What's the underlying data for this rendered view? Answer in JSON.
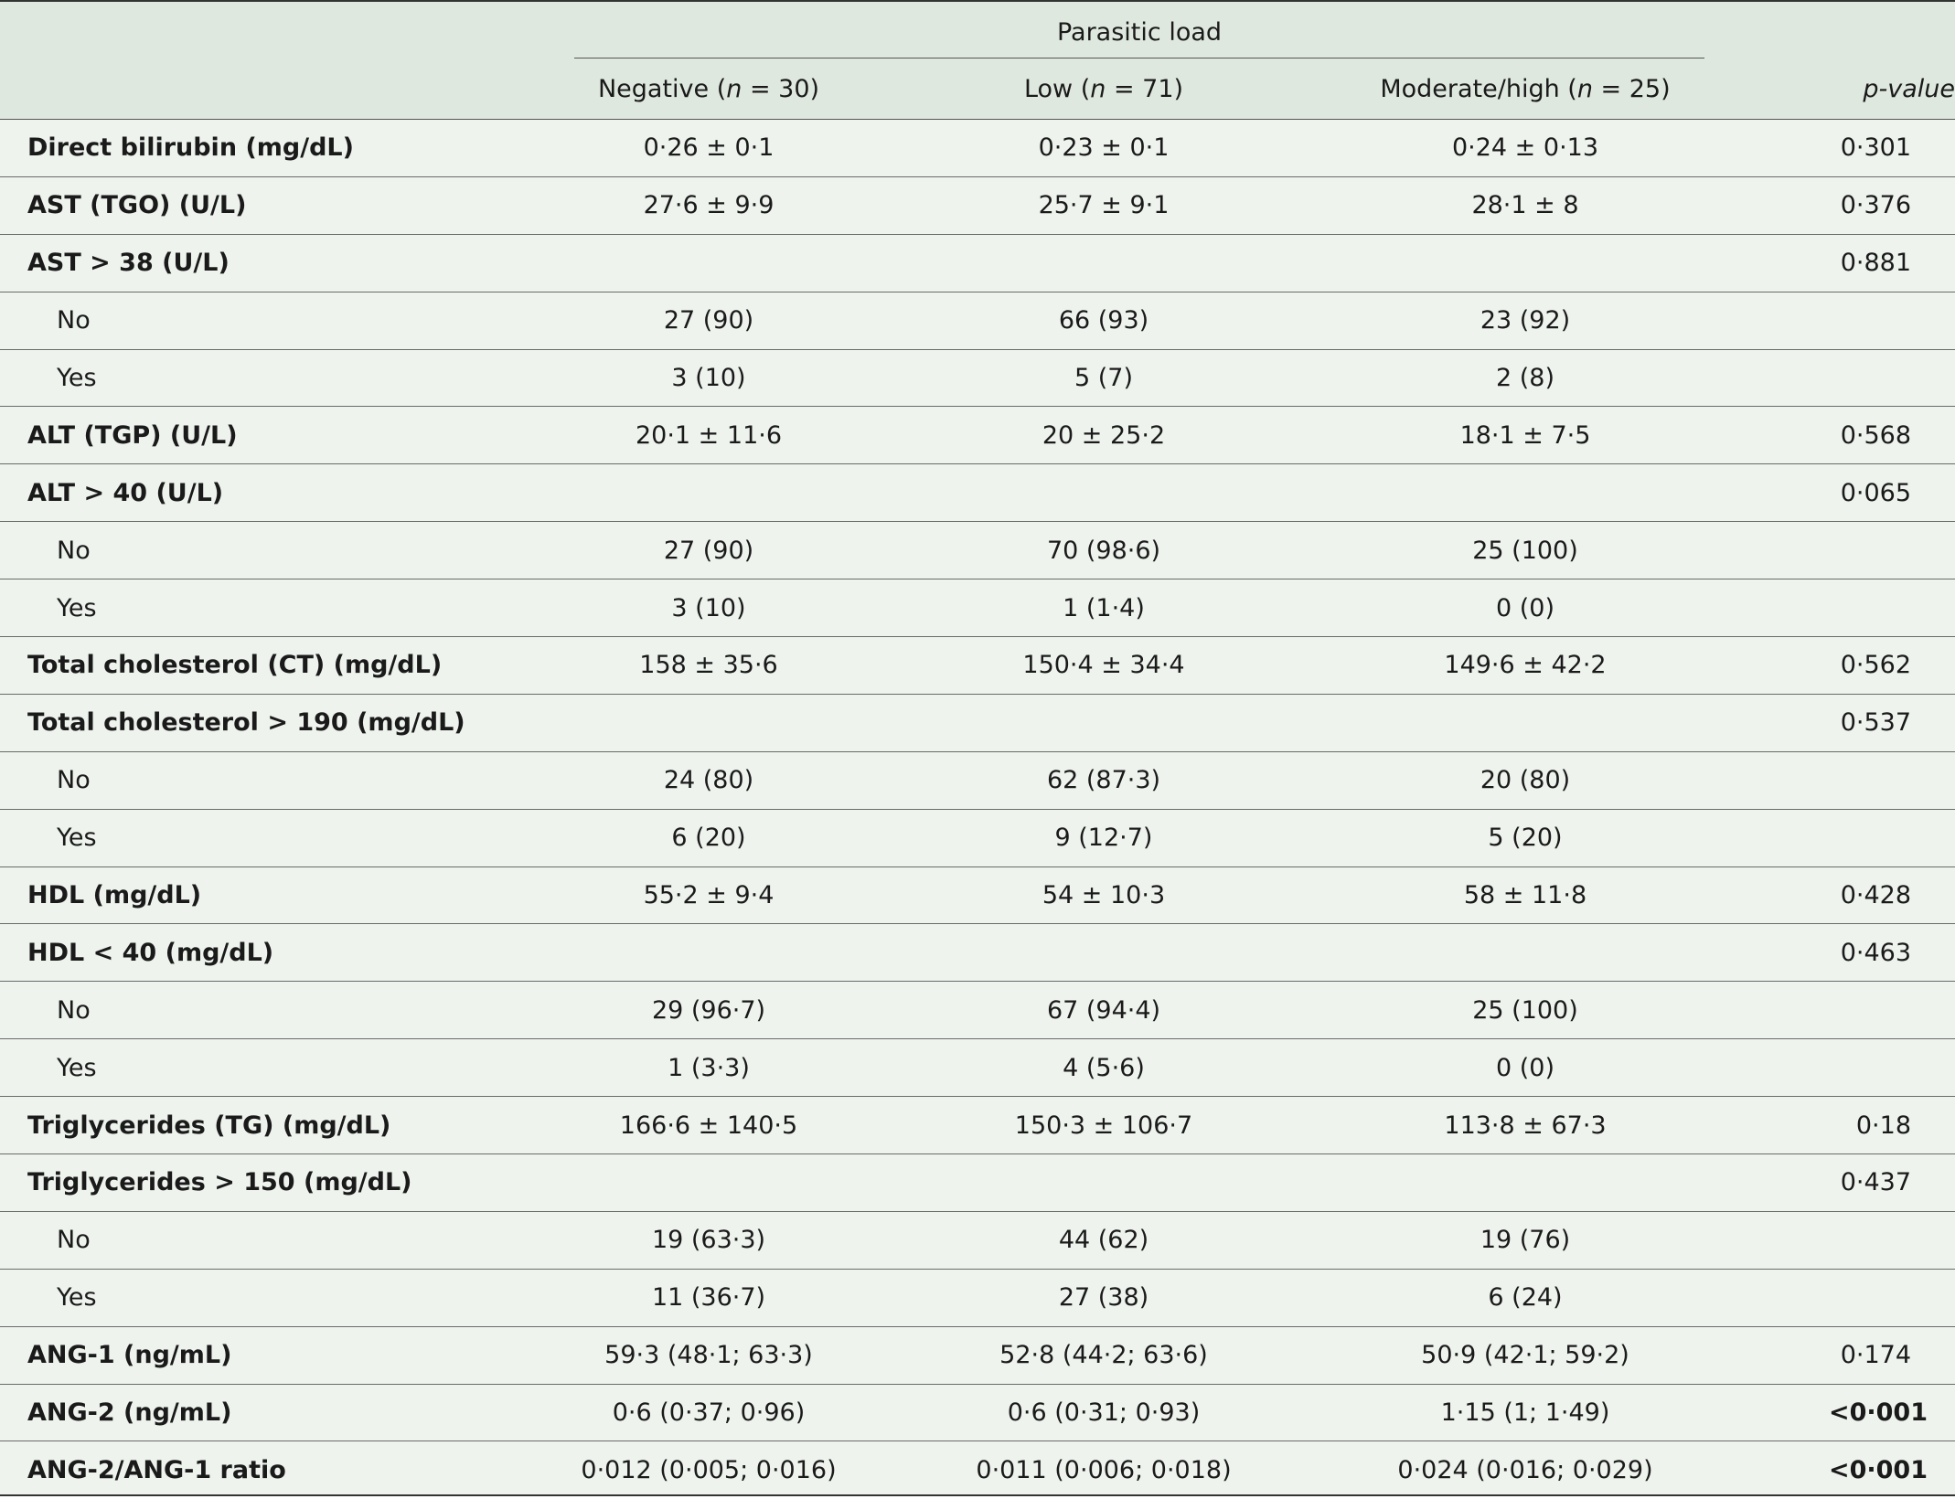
{
  "header": {
    "group_label": "Parasitic load",
    "columns": [
      {
        "name": "Negative (",
        "n_label": "n",
        "n_value": " = 30)"
      },
      {
        "name": "Low (",
        "n_label": "n",
        "n_value": " = 71)"
      },
      {
        "name": "Moderate/high (",
        "n_label": "n",
        "n_value": " = 25)"
      }
    ],
    "pvalue_label": "p-value"
  },
  "rows": [
    {
      "label": "Direct bilirubin (mg/dL)",
      "neg": "0·26 ± 0·1",
      "low": "0·23 ± 0·1",
      "mod": "0·24 ± 0·13",
      "p": "0·301"
    },
    {
      "label": "AST (TGO) (U/L)",
      "neg": "27·6 ± 9·9",
      "low": "25·7 ± 9·1",
      "mod": "28·1 ± 8",
      "p": "0·376"
    },
    {
      "label": "AST > 38 (U/L)",
      "neg": "",
      "low": "",
      "mod": "",
      "p": "0·881"
    },
    {
      "label": "No",
      "neg": "27 (90)",
      "low": "66 (93)",
      "mod": "23 (92)",
      "p": ""
    },
    {
      "label": "Yes",
      "neg": "3 (10)",
      "low": "5 (7)",
      "mod": "2 (8)",
      "p": ""
    },
    {
      "label": "ALT (TGP) (U/L)",
      "neg": "20·1 ± 11·6",
      "low": "20 ± 25·2",
      "mod": "18·1 ± 7·5",
      "p": "0·568"
    },
    {
      "label": "ALT > 40 (U/L)",
      "neg": "",
      "low": "",
      "mod": "",
      "p": "0·065"
    },
    {
      "label": "No",
      "neg": "27 (90)",
      "low": "70 (98·6)",
      "mod": "25 (100)",
      "p": ""
    },
    {
      "label": "Yes",
      "neg": "3 (10)",
      "low": "1 (1·4)",
      "mod": "0 (0)",
      "p": ""
    },
    {
      "label": "Total cholesterol (CT) (mg/dL)",
      "neg": "158 ± 35·6",
      "low": "150·4 ± 34·4",
      "mod": "149·6 ± 42·2",
      "p": "0·562"
    },
    {
      "label": "Total cholesterol > 190 (mg/dL)",
      "neg": "",
      "low": "",
      "mod": "",
      "p": "0·537"
    },
    {
      "label": "No",
      "neg": "24 (80)",
      "low": "62 (87·3)",
      "mod": "20 (80)",
      "p": ""
    },
    {
      "label": "Yes",
      "neg": "6 (20)",
      "low": "9 (12·7)",
      "mod": "5 (20)",
      "p": ""
    },
    {
      "label": "HDL (mg/dL)",
      "neg": "55·2 ± 9·4",
      "low": "54 ± 10·3",
      "mod": "58 ± 11·8",
      "p": "0·428"
    },
    {
      "label": "HDL < 40 (mg/dL)",
      "neg": "",
      "low": "",
      "mod": "",
      "p": "0·463"
    },
    {
      "label": "No",
      "neg": "29 (96·7)",
      "low": "67 (94·4)",
      "mod": "25 (100)",
      "p": ""
    },
    {
      "label": "Yes",
      "neg": "1 (3·3)",
      "low": "4 (5·6)",
      "mod": "0 (0)",
      "p": ""
    },
    {
      "label": "Triglycerides (TG) (mg/dL)",
      "neg": "166·6 ± 140·5",
      "low": "150·3 ± 106·7",
      "mod": "113·8 ± 67·3",
      "p": "0·18"
    },
    {
      "label": "Triglycerides > 150 (mg/dL)",
      "neg": "",
      "low": "",
      "mod": "",
      "p": "0·437"
    },
    {
      "label": "No",
      "neg": "19 (63·3)",
      "low": "44 (62)",
      "mod": "19 (76)",
      "p": ""
    },
    {
      "label": "Yes",
      "neg": "11 (36·7)",
      "low": "27 (38)",
      "mod": "6 (24)",
      "p": ""
    },
    {
      "label": "ANG-1 (ng/mL)",
      "neg": "59·3 (48·1; 63·3)",
      "low": "52·8 (44·2; 63·6)",
      "mod": "50·9 (42·1; 59·2)",
      "p": "0·174"
    },
    {
      "label": "ANG-2 (ng/mL)",
      "neg": "0·6 (0·37; 0·96)",
      "low": "0·6 (0·31; 0·93)",
      "mod": "1·15 (1; 1·49)",
      "p": "<0·001"
    },
    {
      "label": "ANG-2/ANG-1 ratio",
      "neg": "0·012 (0·005; 0·016)",
      "low": "0·011 (0·006; 0·018)",
      "mod": "0·024 (0·016; 0·029)",
      "p": "<0·001"
    }
  ]
}
